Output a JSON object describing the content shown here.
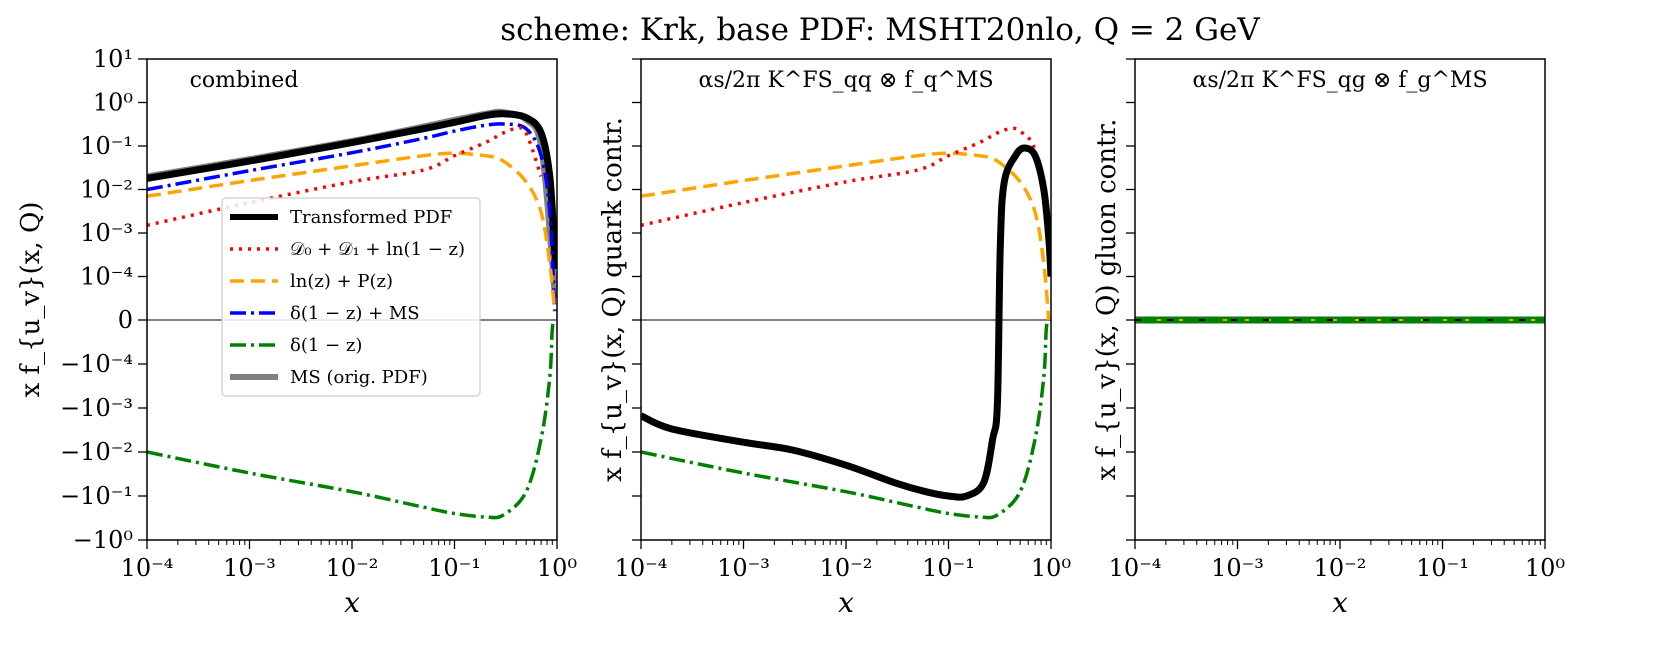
{
  "title": "scheme: Krk, base PDF: MSHT20nlo, Q = 2 GeV",
  "colors": {
    "transformed": "#000000",
    "d0d1": "#ff0000",
    "lnz": "#ffa500",
    "delta_ms": "#0000ff",
    "delta": "#008000",
    "ms": "#808080",
    "zero_line": "#000000"
  },
  "legend": {
    "transformed": "Transformed PDF",
    "d0d1": "𝒟₀ + 𝒟₁ + ln(1 − z)",
    "lnz": "ln(z) + P(z)",
    "delta_ms": "δ(1 − z) + MS",
    "delta": "δ(1 − z)",
    "ms": "MS (orig. PDF)"
  },
  "panels": [
    {
      "label": "combined",
      "ylabel": "x f_{u_v}(x, Q)",
      "xlabel": "x",
      "x_ticks": [
        "10⁻⁴",
        "10⁻³",
        "10⁻²",
        "10⁻¹",
        "10⁰"
      ],
      "y_ticks": [
        "10¹",
        "10⁰",
        "10⁻¹",
        "10⁻²",
        "10⁻³",
        "10⁻⁴",
        "0",
        "−10⁻⁴",
        "−10⁻³",
        "−10⁻²",
        "−10⁻¹",
        "−10⁰"
      ]
    },
    {
      "label": "αs/2π K^FS_qq ⊗ f_q^MS",
      "ylabel": "x f_{u_v}(x, Q) quark contr.",
      "xlabel": "x",
      "x_ticks": [
        "10⁻⁴",
        "10⁻³",
        "10⁻²",
        "10⁻¹",
        "10⁰"
      ]
    },
    {
      "label": "αs/2π K^FS_qg ⊗ f_g^MS",
      "ylabel": "x f_{u_v}(x, Q) gluon contr.",
      "xlabel": "x",
      "x_ticks": [
        "10⁻⁴",
        "10⁻³",
        "10⁻²",
        "10⁻¹",
        "10⁰"
      ]
    }
  ],
  "chart_data": {
    "type": "line",
    "title": "scheme: Krk, base PDF: MSHT20nlo, Q = 2 GeV",
    "xscale": "log",
    "xlim": [
      0.0001,
      1
    ],
    "yscale": "symlog",
    "ylim": [
      -1,
      10
    ],
    "legend_position": "center-left of first panel",
    "panels": [
      {
        "name": "combined",
        "series": [
          {
            "key": "ms",
            "name": "MS (orig. PDF)",
            "style": "solid-thick",
            "points": [
              [
                0.0001,
                0.02
              ],
              [
                0.001,
                0.05
              ],
              [
                0.01,
                0.13
              ],
              [
                0.05,
                0.28
              ],
              [
                0.1,
                0.4
              ],
              [
                0.2,
                0.55
              ],
              [
                0.3,
                0.6
              ],
              [
                0.5,
                0.4
              ],
              [
                0.7,
                0.1
              ],
              [
                0.9,
                0.0002
              ],
              [
                0.95,
                5e-05
              ]
            ]
          },
          {
            "key": "transformed",
            "name": "Transformed PDF",
            "style": "solid-thick",
            "points": [
              [
                0.0001,
                0.018
              ],
              [
                0.001,
                0.045
              ],
              [
                0.01,
                0.12
              ],
              [
                0.05,
                0.25
              ],
              [
                0.1,
                0.35
              ],
              [
                0.2,
                0.5
              ],
              [
                0.3,
                0.55
              ],
              [
                0.5,
                0.45
              ],
              [
                0.7,
                0.2
              ],
              [
                0.85,
                0.02
              ],
              [
                0.95,
                0.0004
              ],
              [
                1.0,
                0.00015
              ]
            ]
          },
          {
            "key": "delta_ms",
            "name": "δ(1 − z) + MS",
            "style": "dashdot",
            "points": [
              [
                0.0001,
                0.01
              ],
              [
                0.001,
                0.027
              ],
              [
                0.01,
                0.07
              ],
              [
                0.05,
                0.15
              ],
              [
                0.1,
                0.22
              ],
              [
                0.2,
                0.3
              ],
              [
                0.3,
                0.32
              ],
              [
                0.5,
                0.25
              ],
              [
                0.7,
                0.06
              ],
              [
                0.85,
                0.003
              ],
              [
                0.95,
                2e-05
              ]
            ]
          },
          {
            "key": "lnz",
            "name": "ln(z) + P(z)",
            "style": "dashed",
            "points": [
              [
                0.0001,
                0.007
              ],
              [
                0.001,
                0.016
              ],
              [
                0.01,
                0.035
              ],
              [
                0.05,
                0.06
              ],
              [
                0.1,
                0.068
              ],
              [
                0.2,
                0.06
              ],
              [
                0.3,
                0.045
              ],
              [
                0.5,
                0.015
              ],
              [
                0.7,
                0.003
              ],
              [
                0.85,
                0.0002
              ],
              [
                0.95,
                2e-05
              ]
            ]
          },
          {
            "key": "d0d1",
            "name": "𝒟₀ + 𝒟₁ + ln(1 − z)",
            "style": "dotted",
            "points": [
              [
                0.0001,
                0.0015
              ],
              [
                0.001,
                0.005
              ],
              [
                0.01,
                0.015
              ],
              [
                0.05,
                0.028
              ],
              [
                0.1,
                0.06
              ],
              [
                0.2,
                0.12
              ],
              [
                0.3,
                0.2
              ],
              [
                0.4,
                0.25
              ],
              [
                0.5,
                0.2
              ],
              [
                0.7,
                0.02
              ]
            ]
          },
          {
            "key": "delta",
            "name": "δ(1 − z)",
            "style": "dashdot",
            "points": [
              [
                0.0001,
                -0.01
              ],
              [
                0.001,
                -0.03
              ],
              [
                0.01,
                -0.08
              ],
              [
                0.05,
                -0.18
              ],
              [
                0.1,
                -0.25
              ],
              [
                0.2,
                -0.3
              ],
              [
                0.3,
                -0.27
              ],
              [
                0.5,
                -0.08
              ],
              [
                0.7,
                -0.005
              ],
              [
                0.85,
                -0.0002
              ],
              [
                0.9,
                -2e-05
              ],
              [
                0.95,
                0
              ]
            ]
          }
        ]
      },
      {
        "name": "quark contribution",
        "series": [
          {
            "key": "lnz",
            "style": "dashed",
            "points": [
              [
                0.0001,
                0.007
              ],
              [
                0.001,
                0.016
              ],
              [
                0.01,
                0.035
              ],
              [
                0.05,
                0.06
              ],
              [
                0.1,
                0.068
              ],
              [
                0.2,
                0.06
              ],
              [
                0.3,
                0.045
              ],
              [
                0.5,
                0.015
              ],
              [
                0.7,
                0.003
              ],
              [
                0.85,
                0.0002
              ],
              [
                0.95,
                0
              ]
            ]
          },
          {
            "key": "d0d1",
            "style": "dotted",
            "points": [
              [
                0.0001,
                0.0015
              ],
              [
                0.001,
                0.005
              ],
              [
                0.01,
                0.015
              ],
              [
                0.05,
                0.028
              ],
              [
                0.1,
                0.06
              ],
              [
                0.2,
                0.12
              ],
              [
                0.3,
                0.2
              ],
              [
                0.4,
                0.25
              ],
              [
                0.5,
                0.22
              ],
              [
                0.7,
                0.08
              ],
              [
                0.9,
                0.003
              ],
              [
                1.0,
                0.0001
              ]
            ]
          },
          {
            "key": "transformed",
            "style": "solid-thick",
            "points": [
              [
                0.0001,
                -0.0015
              ],
              [
                0.0002,
                -0.003
              ],
              [
                0.001,
                -0.006
              ],
              [
                0.003,
                -0.009
              ],
              [
                0.01,
                -0.02
              ],
              [
                0.03,
                -0.05
              ],
              [
                0.06,
                -0.08
              ],
              [
                0.1,
                -0.1
              ],
              [
                0.15,
                -0.1
              ],
              [
                0.22,
                -0.05
              ],
              [
                0.27,
                -0.005
              ],
              [
                0.3,
                -0.0008
              ],
              [
                0.32,
                0.0005
              ],
              [
                0.35,
                0.015
              ],
              [
                0.45,
                0.06
              ],
              [
                0.55,
                0.09
              ],
              [
                0.7,
                0.06
              ],
              [
                0.85,
                0.01
              ],
              [
                0.95,
                0.0008
              ],
              [
                1.0,
                0.0001
              ]
            ]
          },
          {
            "key": "delta",
            "style": "dashdot",
            "points": [
              [
                0.0001,
                -0.01
              ],
              [
                0.001,
                -0.03
              ],
              [
                0.01,
                -0.08
              ],
              [
                0.05,
                -0.18
              ],
              [
                0.1,
                -0.25
              ],
              [
                0.2,
                -0.3
              ],
              [
                0.3,
                -0.27
              ],
              [
                0.5,
                -0.08
              ],
              [
                0.7,
                -0.005
              ],
              [
                0.85,
                -0.0002
              ],
              [
                0.9,
                -2e-05
              ],
              [
                0.95,
                0
              ]
            ]
          }
        ]
      },
      {
        "name": "gluon contribution",
        "series": [
          {
            "key": "delta",
            "style": "solid-thick",
            "points": [
              [
                0.0001,
                0
              ],
              [
                1.0,
                0
              ]
            ]
          },
          {
            "key": "lnz",
            "style": "dashed",
            "points": [
              [
                0.0001,
                0
              ],
              [
                1.0,
                0
              ]
            ]
          },
          {
            "key": "transformed",
            "style": "dashed-thin",
            "points": [
              [
                0.0001,
                0
              ],
              [
                1.0,
                0
              ]
            ]
          }
        ]
      }
    ]
  }
}
